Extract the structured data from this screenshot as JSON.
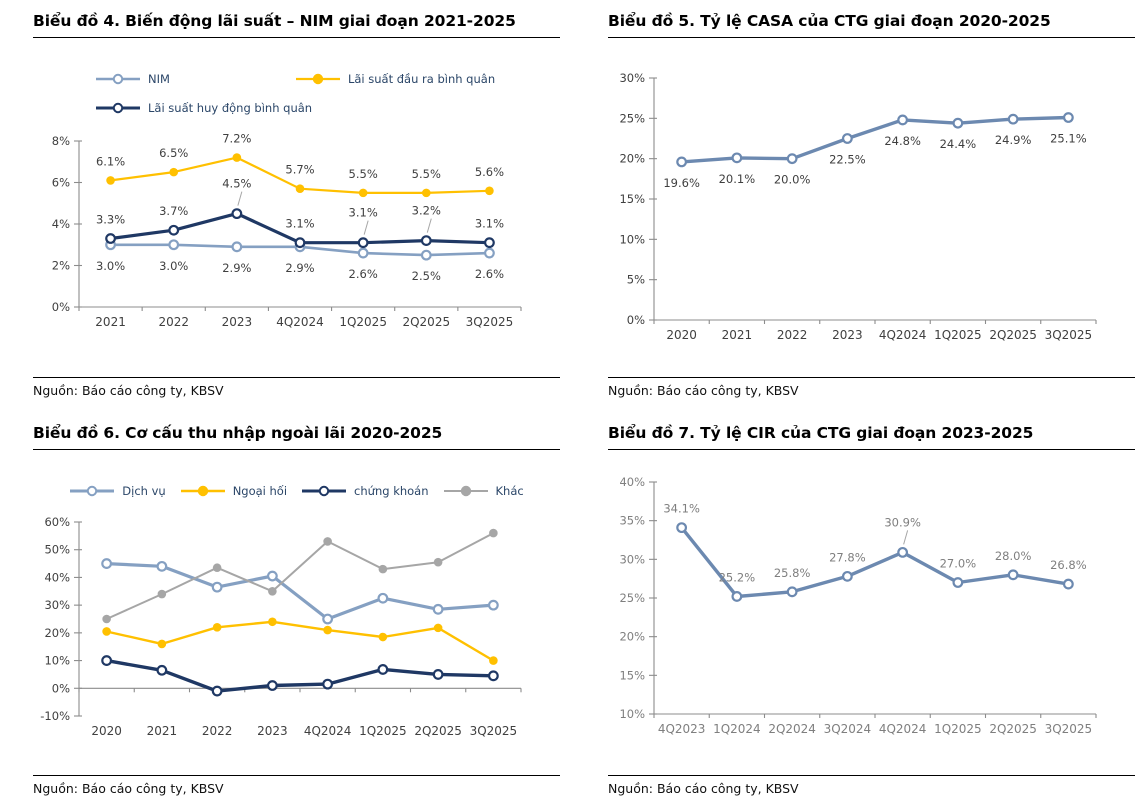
{
  "source_note": "Nguồn: Báo cáo công ty, KBSV",
  "colors": {
    "light_blue": "#85A0C2",
    "steel_blue": "#6C89B0",
    "yellow": "#FFC000",
    "navy": "#1F3864",
    "gray_series": "#A6A6A6",
    "axis_line": "#8C8C8C",
    "dark_text": "#404040",
    "gray_text": "#7F7F7F"
  },
  "charts": [
    {
      "title": "Biểu đồ 4. Biến động lãi suất – NIM giai đoạn 2021-2025",
      "source": "Nguồn: Báo cáo công ty, KBSV",
      "chart_data": {
        "type": "line",
        "categories": [
          "2021",
          "2022",
          "2023",
          "4Q2024",
          "1Q2025",
          "2Q2025",
          "3Q2025"
        ],
        "ylim": [
          0,
          8
        ],
        "ystep": 2,
        "yformat": "percent",
        "legend": true,
        "axis_text_color": "#404040",
        "label_color": "#404040",
        "series": [
          {
            "name": "NIM",
            "color": "#85A0C2",
            "marker": "open",
            "width": 2.6,
            "values": [
              3.0,
              3.0,
              2.9,
              2.9,
              2.6,
              2.5,
              2.6
            ],
            "labels": "below",
            "leaders": []
          },
          {
            "name": "Lãi suất đầu ra bình quân",
            "color": "#FFC000",
            "marker": "filled",
            "width": 2.2,
            "values": [
              6.1,
              6.5,
              7.2,
              5.7,
              5.5,
              5.5,
              5.6
            ],
            "labels": "above",
            "leaders": []
          },
          {
            "name": "Lãi suất huy động bình quân",
            "color": "#1F3864",
            "marker": "open",
            "width": 3.2,
            "values": [
              3.3,
              3.7,
              4.5,
              3.1,
              3.1,
              3.2,
              3.1
            ],
            "labels": "above",
            "leaders": [
              2,
              4,
              5
            ]
          }
        ]
      }
    },
    {
      "title": "Biểu đồ 5. Tỷ lệ CASA của CTG giai đoạn 2020-2025",
      "source": "Nguồn: Báo cáo công ty, KBSV",
      "chart_data": {
        "type": "line",
        "categories": [
          "2020",
          "2021",
          "2022",
          "2023",
          "4Q2024",
          "1Q2025",
          "2Q2025",
          "3Q2025"
        ],
        "ylim": [
          0,
          30
        ],
        "ystep": 5,
        "yformat": "percent",
        "legend": false,
        "axis_text_color": "#404040",
        "label_color": "#3F3F3F",
        "series": [
          {
            "name": "CASA",
            "color": "#6C89B0",
            "marker": "open",
            "width": 3.4,
            "values": [
              19.6,
              20.1,
              20.0,
              22.5,
              24.8,
              24.4,
              24.9,
              25.1
            ],
            "labels": "below",
            "leaders": []
          }
        ]
      }
    },
    {
      "title": "Biểu đồ 6. Cơ cấu thu nhập ngoài lãi 2020-2025",
      "source": "Nguồn: Báo cáo công ty, KBSV",
      "chart_data": {
        "type": "line",
        "categories": [
          "2020",
          "2021",
          "2022",
          "2023",
          "4Q2024",
          "1Q2025",
          "2Q2025",
          "3Q2025"
        ],
        "ylim": [
          -10,
          60
        ],
        "ystep": 10,
        "yformat": "percent",
        "legend": true,
        "x_axis_at": 0,
        "axis_text_color": "#404040",
        "label_color": "#404040",
        "series": [
          {
            "name": "Dịch vụ",
            "color": "#85A0C2",
            "marker": "open",
            "width": 3.2,
            "values": [
              45,
              44,
              36.5,
              40.5,
              25,
              32.5,
              28.5,
              30
            ],
            "labels": "none",
            "leaders": []
          },
          {
            "name": "Ngoại hối",
            "color": "#FFC000",
            "marker": "filled",
            "width": 2.4,
            "values": [
              20.5,
              16,
              22,
              24,
              21,
              18.5,
              21.8,
              10
            ],
            "labels": "none",
            "leaders": []
          },
          {
            "name": "chứng khoán",
            "color": "#1F3864",
            "marker": "open",
            "width": 3.4,
            "values": [
              10,
              6.5,
              -1,
              1,
              1.5,
              6.8,
              5,
              4.5
            ],
            "labels": "none",
            "leaders": []
          },
          {
            "name": "Khác",
            "color": "#A6A6A6",
            "marker": "filled",
            "width": 2.0,
            "values": [
              25,
              34,
              43.5,
              35,
              53,
              43,
              45.5,
              56
            ],
            "labels": "none",
            "leaders": []
          }
        ]
      }
    },
    {
      "title": "Biểu đồ 7. Tỷ lệ CIR của CTG giai đoạn 2023-2025",
      "source": "Nguồn: Báo cáo công ty, KBSV",
      "chart_data": {
        "type": "line",
        "categories": [
          "4Q2023",
          "1Q2024",
          "2Q2024",
          "3Q2024",
          "4Q2024",
          "1Q2025",
          "2Q2025",
          "3Q2025"
        ],
        "ylim": [
          10,
          40
        ],
        "ystep": 5,
        "yformat": "percent",
        "legend": false,
        "axis_text_color": "#7F7F7F",
        "label_color": "#7F7F7F",
        "series": [
          {
            "name": "CIR",
            "color": "#6C89B0",
            "marker": "open",
            "width": 3.4,
            "values": [
              34.1,
              25.2,
              25.8,
              27.8,
              30.9,
              27.0,
              28.0,
              26.8
            ],
            "labels": "above",
            "leaders": [
              4
            ]
          }
        ]
      }
    }
  ]
}
